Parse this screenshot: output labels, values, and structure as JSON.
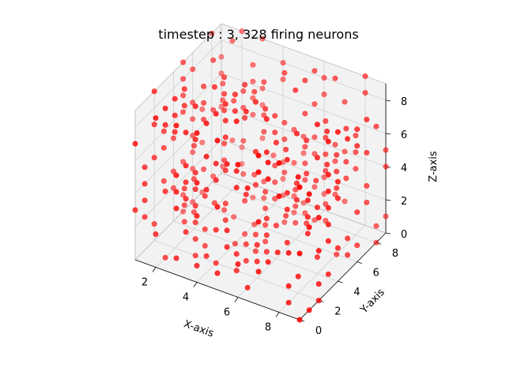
{
  "chart_data": {
    "type": "scatter",
    "projection": "3d",
    "title": "timestep : 3, 328 firing neurons",
    "xlabel": "X-axis",
    "ylabel": "Y-axis",
    "zlabel": "Z-axis",
    "xlim": [
      1,
      9
    ],
    "ylim": [
      0,
      9
    ],
    "zlim": [
      0,
      9
    ],
    "xticks": [
      2,
      4,
      6,
      8
    ],
    "yticks": [
      0,
      2,
      4,
      6,
      8
    ],
    "zticks": [
      0,
      2,
      4,
      6,
      8
    ],
    "grid": true,
    "marker_color": "#ff0000",
    "pane_color": "#f2f2f2",
    "grid_color": "#d0d0d0",
    "firing_count": 328,
    "lattice": {
      "x": [
        1,
        9
      ],
      "y": [
        0,
        9
      ],
      "z": [
        0,
        9
      ],
      "step": 1
    }
  }
}
